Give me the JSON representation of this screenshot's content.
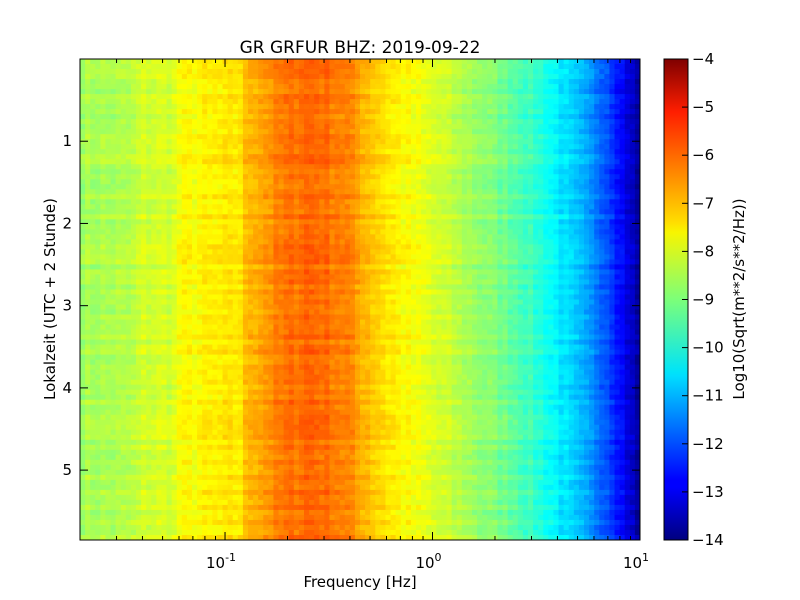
{
  "chart_data": {
    "type": "heatmap",
    "title": "GR GRFUR BHZ: 2019-09-22",
    "xlabel": "Frequency [Hz]",
    "ylabel": "Lokalzeit (UTC + 2 Stunde)",
    "x_scale": "log",
    "xlim": [
      0.02,
      10
    ],
    "x_tick_values": [
      0.1,
      1,
      10
    ],
    "x_tick_labels": [
      {
        "base": "10",
        "exp": "-1"
      },
      {
        "base": "10",
        "exp": "0"
      },
      {
        "base": "10",
        "exp": "1"
      }
    ],
    "ylim": [
      0,
      5.85
    ],
    "y_inverted": true,
    "y_ticks": [
      1,
      2,
      3,
      4,
      5
    ],
    "colormap": "jet",
    "colorbar": {
      "label": "Log10(Sqrt(m**2/s**2/Hz))",
      "range": [
        -14,
        -4
      ],
      "ticks": [
        -4,
        -5,
        -6,
        -7,
        -8,
        -9,
        -10,
        -11,
        -12,
        -13,
        -14
      ]
    },
    "spectrum_profile": {
      "frequency_hz": [
        0.02,
        0.035,
        0.04,
        0.058,
        0.06,
        0.1,
        0.118,
        0.13,
        0.16,
        0.2,
        0.25,
        0.3,
        0.38,
        0.45,
        0.55,
        0.7,
        1.0,
        1.5,
        2.5,
        3.5,
        5.0,
        7.0,
        8.5,
        10.0
      ],
      "log10_amplitude": [
        -8.6,
        -8.5,
        -8.2,
        -8.1,
        -7.8,
        -7.6,
        -7.5,
        -7.0,
        -6.7,
        -6.4,
        -6.2,
        -6.3,
        -6.5,
        -6.9,
        -7.3,
        -7.7,
        -8.1,
        -8.6,
        -9.3,
        -10.0,
        -10.9,
        -11.9,
        -12.9,
        -13.8
      ]
    }
  }
}
